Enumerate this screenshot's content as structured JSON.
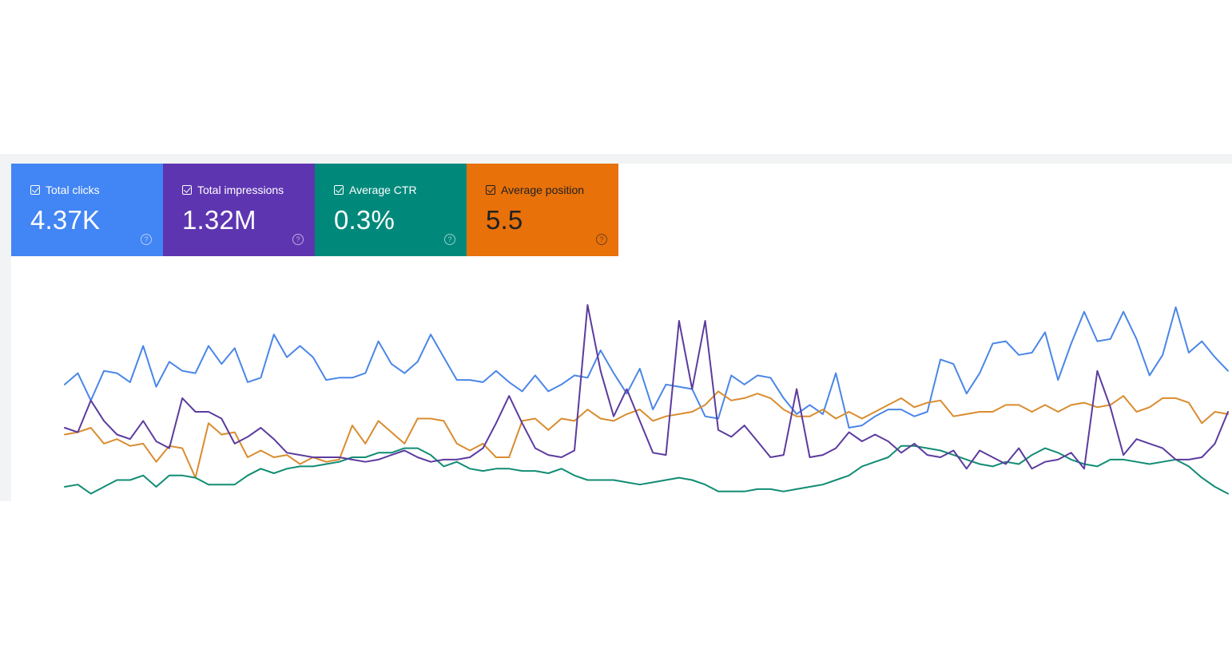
{
  "metrics": [
    {
      "label": "Total clicks",
      "value": "4.37K",
      "color": "#4285f4",
      "text": "light"
    },
    {
      "label": "Total impressions",
      "value": "1.32M",
      "color": "#5e35b1",
      "text": "light"
    },
    {
      "label": "Average CTR",
      "value": "0.3%",
      "color": "#00897b",
      "text": "light"
    },
    {
      "label": "Average position",
      "value": "5.5",
      "color": "#e8710a",
      "text": "dark"
    }
  ],
  "help_glyph": "?",
  "chart_data": {
    "type": "line",
    "grid": false,
    "axes_visible": false,
    "series": [
      {
        "name": "Total clicks",
        "color": "#4a86e8",
        "values": [
          0.52,
          0.57,
          0.45,
          0.58,
          0.57,
          0.53,
          0.69,
          0.51,
          0.62,
          0.58,
          0.57,
          0.69,
          0.61,
          0.68,
          0.53,
          0.55,
          0.74,
          0.64,
          0.69,
          0.64,
          0.54,
          0.55,
          0.55,
          0.57,
          0.71,
          0.61,
          0.57,
          0.62,
          0.74,
          0.64,
          0.54,
          0.54,
          0.53,
          0.58,
          0.53,
          0.49,
          0.56,
          0.49,
          0.52,
          0.56,
          0.55,
          0.67,
          0.57,
          0.48,
          0.59,
          0.41,
          0.52,
          0.51,
          0.5,
          0.38,
          0.37,
          0.56,
          0.52,
          0.56,
          0.55,
          0.46,
          0.39,
          0.43,
          0.39,
          0.57,
          0.33,
          0.34,
          0.38,
          0.41,
          0.41,
          0.38,
          0.4,
          0.63,
          0.61,
          0.48,
          0.57,
          0.7,
          0.71,
          0.65,
          0.66,
          0.75,
          0.54,
          0.7,
          0.84,
          0.71,
          0.72,
          0.84,
          0.72,
          0.56,
          0.65,
          0.86,
          0.66,
          0.71,
          0.64,
          0.58
        ]
      },
      {
        "name": "Total impressions",
        "color": "#5c3b9e",
        "values": [
          0.33,
          0.31,
          0.45,
          0.36,
          0.3,
          0.28,
          0.36,
          0.27,
          0.24,
          0.46,
          0.4,
          0.4,
          0.37,
          0.26,
          0.29,
          0.33,
          0.28,
          0.22,
          0.21,
          0.2,
          0.2,
          0.2,
          0.19,
          0.18,
          0.19,
          0.21,
          0.23,
          0.2,
          0.18,
          0.19,
          0.19,
          0.2,
          0.24,
          0.35,
          0.47,
          0.35,
          0.24,
          0.21,
          0.2,
          0.23,
          0.87,
          0.58,
          0.38,
          0.5,
          0.36,
          0.22,
          0.21,
          0.8,
          0.5,
          0.8,
          0.32,
          0.29,
          0.34,
          0.27,
          0.2,
          0.21,
          0.5,
          0.2,
          0.21,
          0.24,
          0.31,
          0.27,
          0.3,
          0.27,
          0.22,
          0.26,
          0.21,
          0.2,
          0.23,
          0.15,
          0.23,
          0.2,
          0.17,
          0.24,
          0.15,
          0.18,
          0.19,
          0.22,
          0.15,
          0.58,
          0.42,
          0.21,
          0.28,
          0.26,
          0.24,
          0.19,
          0.19,
          0.2,
          0.26,
          0.4
        ]
      },
      {
        "name": "Average CTR",
        "color": "#d98c2f",
        "values": [
          0.3,
          0.31,
          0.33,
          0.26,
          0.28,
          0.25,
          0.26,
          0.18,
          0.25,
          0.24,
          0.11,
          0.35,
          0.3,
          0.31,
          0.2,
          0.23,
          0.2,
          0.21,
          0.17,
          0.2,
          0.18,
          0.19,
          0.34,
          0.26,
          0.36,
          0.31,
          0.26,
          0.37,
          0.37,
          0.36,
          0.26,
          0.23,
          0.26,
          0.2,
          0.2,
          0.36,
          0.37,
          0.32,
          0.37,
          0.36,
          0.41,
          0.37,
          0.36,
          0.39,
          0.41,
          0.36,
          0.38,
          0.39,
          0.4,
          0.43,
          0.49,
          0.45,
          0.46,
          0.48,
          0.46,
          0.41,
          0.38,
          0.38,
          0.41,
          0.37,
          0.4,
          0.37,
          0.4,
          0.43,
          0.46,
          0.42,
          0.44,
          0.45,
          0.38,
          0.39,
          0.4,
          0.4,
          0.43,
          0.43,
          0.4,
          0.43,
          0.4,
          0.43,
          0.44,
          0.42,
          0.43,
          0.47,
          0.4,
          0.42,
          0.46,
          0.46,
          0.44,
          0.35,
          0.4,
          0.39
        ]
      },
      {
        "name": "Average position",
        "color": "#118c73",
        "values": [
          0.07,
          0.08,
          0.04,
          0.07,
          0.1,
          0.1,
          0.12,
          0.07,
          0.12,
          0.12,
          0.11,
          0.08,
          0.08,
          0.08,
          0.12,
          0.15,
          0.13,
          0.15,
          0.16,
          0.16,
          0.17,
          0.18,
          0.2,
          0.2,
          0.22,
          0.22,
          0.24,
          0.24,
          0.21,
          0.16,
          0.18,
          0.15,
          0.14,
          0.15,
          0.15,
          0.14,
          0.14,
          0.13,
          0.15,
          0.12,
          0.1,
          0.1,
          0.1,
          0.09,
          0.08,
          0.09,
          0.1,
          0.11,
          0.1,
          0.08,
          0.05,
          0.05,
          0.05,
          0.06,
          0.06,
          0.05,
          0.06,
          0.07,
          0.08,
          0.1,
          0.12,
          0.16,
          0.18,
          0.2,
          0.25,
          0.25,
          0.24,
          0.23,
          0.21,
          0.19,
          0.17,
          0.16,
          0.18,
          0.17,
          0.21,
          0.24,
          0.22,
          0.19,
          0.17,
          0.16,
          0.19,
          0.19,
          0.18,
          0.17,
          0.18,
          0.19,
          0.16,
          0.11,
          0.07,
          0.04
        ]
      }
    ]
  }
}
